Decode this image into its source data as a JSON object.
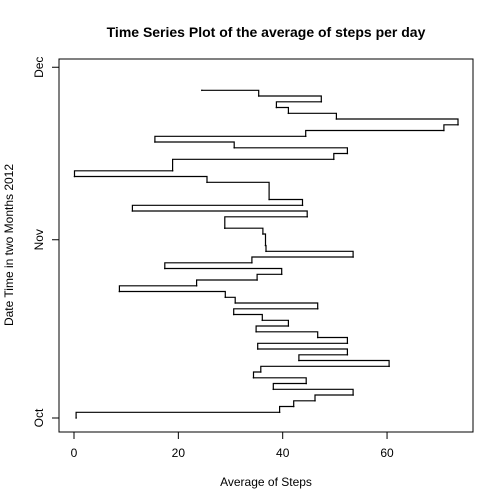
{
  "chart_data": {
    "type": "line",
    "title": "Time Series Plot of the average of steps per day",
    "xlabel": "Average of Steps",
    "ylabel": "Date Time in two Months 2012",
    "xlim": [
      0,
      73.6
    ],
    "ylim": [
      "2012-10-01",
      "2012-11-30"
    ],
    "x_ticks": [
      0,
      20,
      40,
      60
    ],
    "y_ticks": [
      {
        "date": "2012-10-01",
        "label": "Oct"
      },
      {
        "date": "2012-11-01",
        "label": "Nov"
      },
      {
        "date": "2012-12-01",
        "label": "Dec"
      }
    ],
    "grid": false,
    "legend": "none",
    "line_color": "#000000",
    "step": true,
    "series": [
      {
        "x": [
          0.4,
          39.4,
          42.1,
          46.2,
          53.5,
          38.2,
          44.5,
          34.4,
          35.8,
          60.4,
          43.1,
          52.4,
          35.2,
          52.4,
          46.7,
          34.9,
          41.1,
          36.1,
          30.6,
          46.7,
          30.9,
          29.0,
          8.7,
          23.5,
          35.1,
          39.8,
          17.4,
          34.1,
          53.5,
          36.8,
          36.7,
          36.2,
          28.9,
          44.7,
          11.2,
          43.8,
          37.4,
          25.5,
          0.1,
          18.9,
          49.8,
          52.4,
          30.7,
          15.5,
          44.4,
          70.9,
          73.6,
          50.3,
          41.1,
          38.8,
          47.4,
          35.4,
          24.5
        ],
        "y": [
          "2012-10-01",
          "2012-10-02",
          "2012-10-03",
          "2012-10-04",
          "2012-10-05",
          "2012-10-06",
          "2012-10-07",
          "2012-10-08",
          "2012-10-09",
          "2012-10-10",
          "2012-10-11",
          "2012-10-12",
          "2012-10-13",
          "2012-10-14",
          "2012-10-15",
          "2012-10-16",
          "2012-10-17",
          "2012-10-18",
          "2012-10-19",
          "2012-10-20",
          "2012-10-21",
          "2012-10-22",
          "2012-10-23",
          "2012-10-24",
          "2012-10-25",
          "2012-10-26",
          "2012-10-27",
          "2012-10-28",
          "2012-10-29",
          "2012-10-30",
          "2012-10-31",
          "2012-11-02",
          "2012-11-03",
          "2012-11-05",
          "2012-11-06",
          "2012-11-07",
          "2012-11-08",
          "2012-11-11",
          "2012-11-12",
          "2012-11-13",
          "2012-11-15",
          "2012-11-16",
          "2012-11-17",
          "2012-11-18",
          "2012-11-19",
          "2012-11-20",
          "2012-11-21",
          "2012-11-22",
          "2012-11-23",
          "2012-11-24",
          "2012-11-25",
          "2012-11-26",
          "2012-11-27"
        ]
      }
    ]
  }
}
